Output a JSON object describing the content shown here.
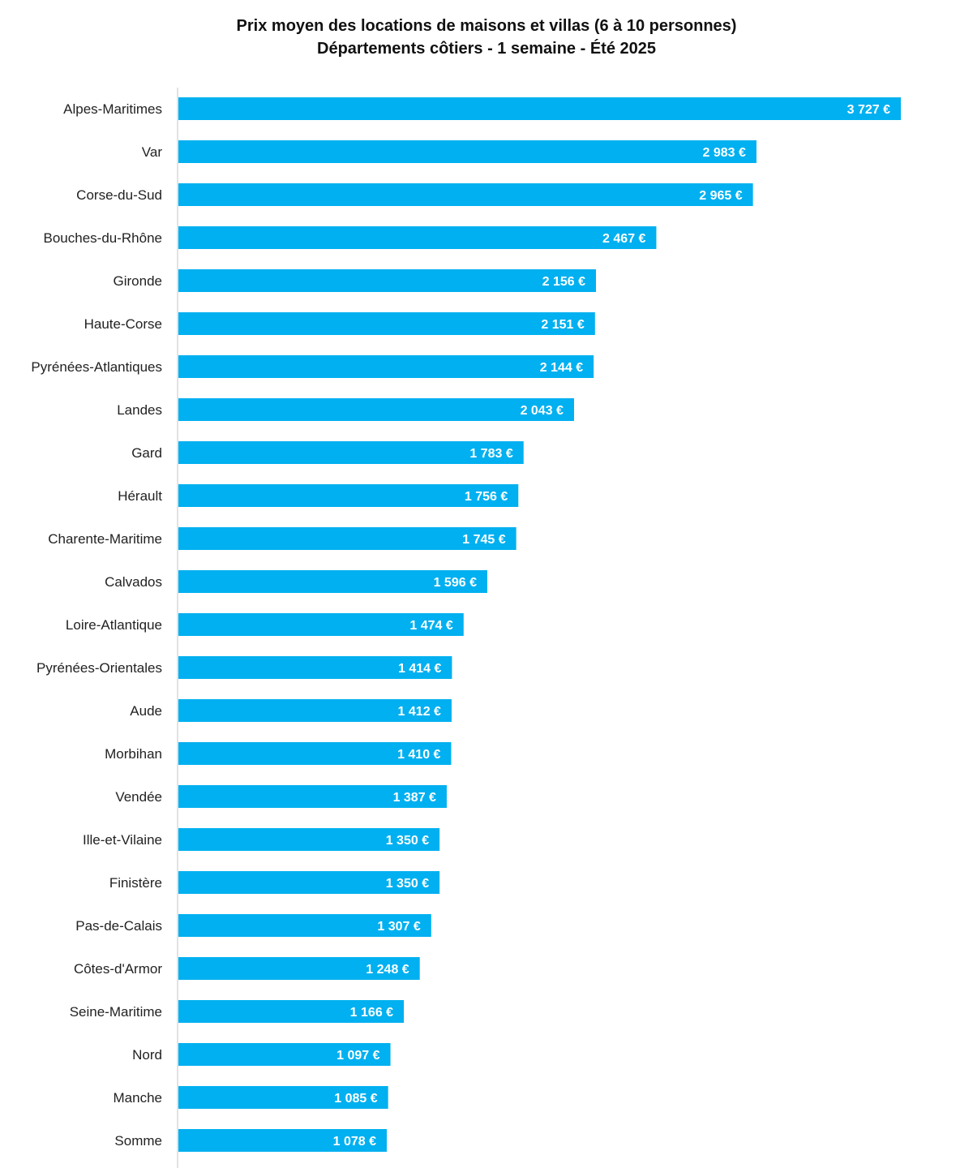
{
  "chart_data": {
    "type": "bar",
    "orientation": "horizontal",
    "title": "Prix moyen des locations de maisons et villas (6 à 10 personnes)",
    "subtitle": "Départements côtiers - 1 semaine - Été 2025",
    "bar_color": "#00B0F0",
    "value_label_color": "#FFFFFF",
    "axis_line_color": "#D9D9D9",
    "categories": [
      "Alpes-Maritimes",
      "Var",
      "Corse-du-Sud",
      "Bouches-du-Rhône",
      "Gironde",
      "Haute-Corse",
      "Pyrénées-Atlantiques",
      "Landes",
      "Gard",
      "Hérault",
      "Charente-Maritime",
      "Calvados",
      "Loire-Atlantique",
      "Pyrénées-Orientales",
      "Aude",
      "Morbihan",
      "Vendée",
      "Ille-et-Vilaine",
      "Finistère",
      "Pas-de-Calais",
      "Côtes-d'Armor",
      "Seine-Maritime",
      "Nord",
      "Manche",
      "Somme"
    ],
    "values": [
      3727,
      2983,
      2965,
      2467,
      2156,
      2151,
      2144,
      2043,
      1783,
      1756,
      1745,
      1596,
      1474,
      1414,
      1412,
      1410,
      1387,
      1350,
      1350,
      1307,
      1248,
      1166,
      1097,
      1085,
      1078
    ],
    "value_labels": [
      "3 727 €",
      "2 983 €",
      "2 965 €",
      "2 467 €",
      "2 156 €",
      "2 151 €",
      "2 144 €",
      "2 043 €",
      "1 783 €",
      "1 756 €",
      "1 745 €",
      "1 596 €",
      "1 474 €",
      "1 414 €",
      "1 412 €",
      "1 410 €",
      "1 387 €",
      "1 350 €",
      "1 350 €",
      "1 307 €",
      "1 248 €",
      "1 166 €",
      "1 097 €",
      "1 085 €",
      "1 078 €"
    ],
    "xlim": [
      0,
      3727
    ],
    "grid": false,
    "legend": "none"
  }
}
